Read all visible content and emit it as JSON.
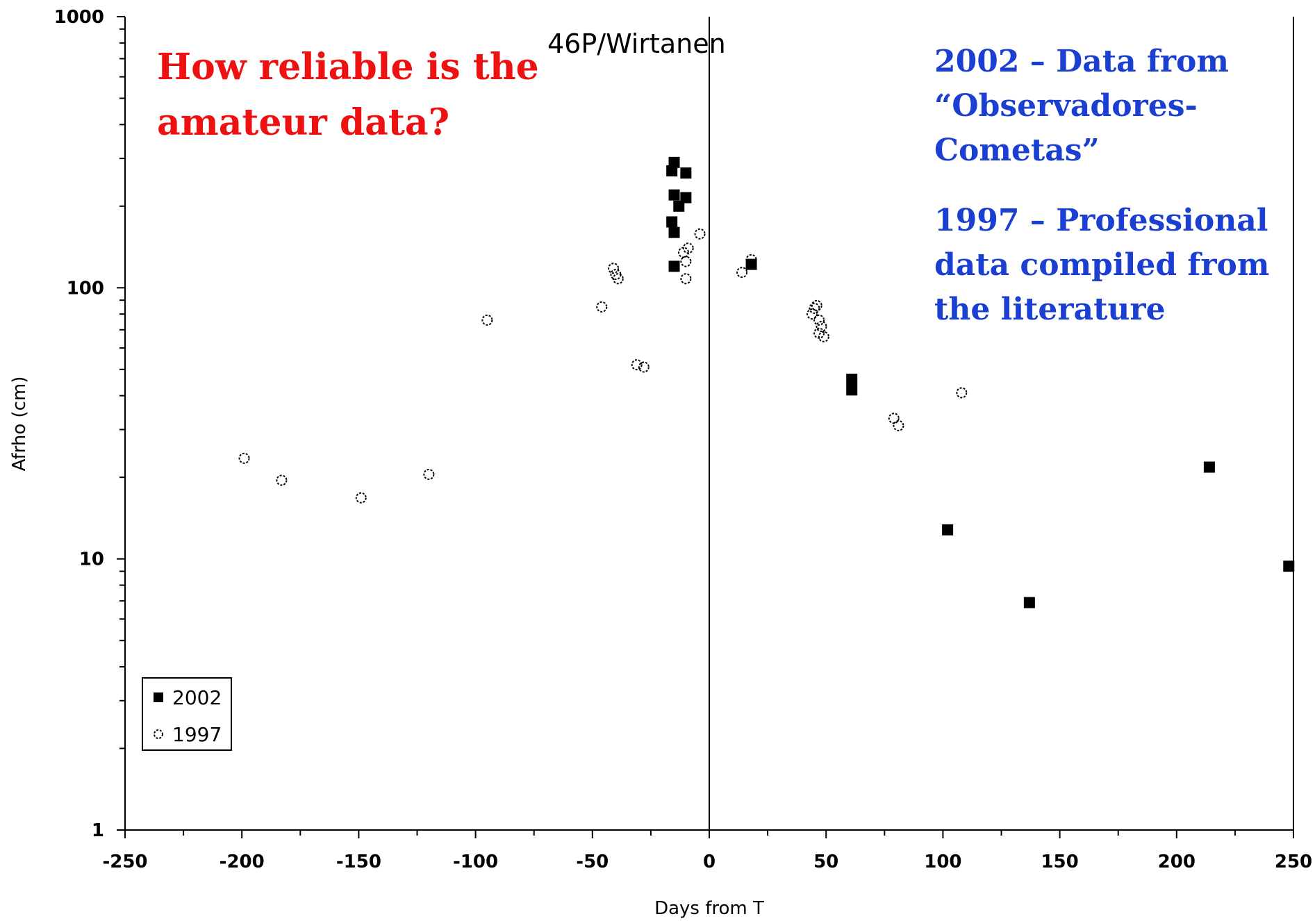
{
  "chart_data": {
    "type": "scatter",
    "title": "46P/Wirtanen",
    "xlabel": "Days from T",
    "ylabel": "Afrho (cm)",
    "xlim": [
      -250,
      250
    ],
    "ylim": [
      1,
      1000
    ],
    "yscale": "log",
    "x_ticks": [
      "-250",
      "-200",
      "-150",
      "-100",
      "-50",
      "0",
      "50",
      "100",
      "150",
      "200",
      "250"
    ],
    "y_ticks": [
      "1",
      "10",
      "100",
      "1000"
    ],
    "vertical_line_x": 0,
    "grid": false,
    "legend_position": "bottom-left",
    "annotations": {
      "red": [
        "How reliable is the",
        "amateur data?"
      ],
      "blue_2002": [
        "2002 – Data from",
        "“Observadores-",
        "Cometas”"
      ],
      "blue_1997": [
        "1997 – Professional",
        "data compiled from",
        "the literature"
      ]
    },
    "series": [
      {
        "name": "2002",
        "marker": "filled-square",
        "color": "#000000",
        "points": [
          [
            -15,
            290
          ],
          [
            -16,
            270
          ],
          [
            -10,
            265
          ],
          [
            -15,
            220
          ],
          [
            -10,
            215
          ],
          [
            -13,
            200
          ],
          [
            -16,
            175
          ],
          [
            -15,
            160
          ],
          [
            -15,
            120
          ],
          [
            18,
            122
          ],
          [
            61,
            46
          ],
          [
            61,
            42
          ],
          [
            102,
            12.8
          ],
          [
            137,
            6.9
          ],
          [
            214,
            21.8
          ],
          [
            248,
            9.4
          ]
        ]
      },
      {
        "name": "1997",
        "marker": "open-circle",
        "color": "#000000",
        "points": [
          [
            -199,
            23.5
          ],
          [
            -183,
            19.5
          ],
          [
            -149,
            16.8
          ],
          [
            -120,
            20.5
          ],
          [
            -95,
            76
          ],
          [
            -46,
            85
          ],
          [
            -41,
            118
          ],
          [
            -40,
            112
          ],
          [
            -39,
            108
          ],
          [
            -31,
            52
          ],
          [
            -28,
            51
          ],
          [
            -11,
            135
          ],
          [
            -10,
            125
          ],
          [
            -9,
            140
          ],
          [
            -10,
            108
          ],
          [
            -4,
            158
          ],
          [
            14,
            114
          ],
          [
            18,
            127
          ],
          [
            44,
            80
          ],
          [
            45,
            84
          ],
          [
            46,
            86
          ],
          [
            47,
            76
          ],
          [
            48,
            72
          ],
          [
            47,
            68
          ],
          [
            49,
            66
          ],
          [
            79,
            33
          ],
          [
            81,
            31
          ],
          [
            108,
            41
          ]
        ]
      }
    ]
  }
}
